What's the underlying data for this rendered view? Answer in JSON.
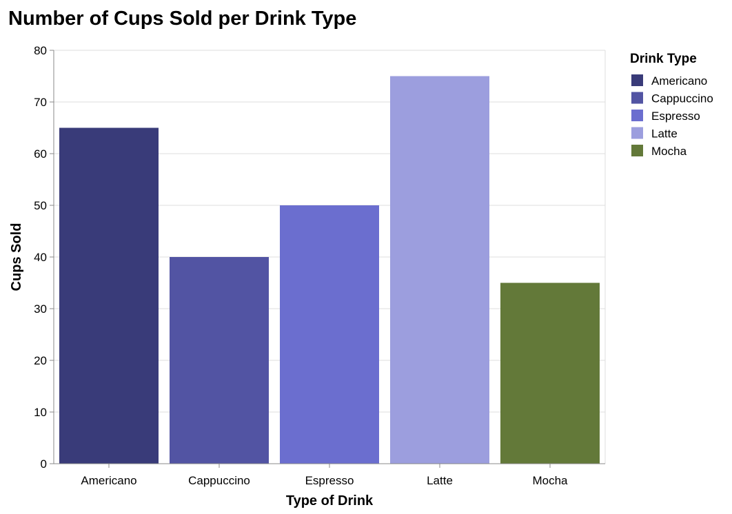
{
  "chart_data": {
    "type": "bar",
    "title": "Number of Cups Sold per Drink Type",
    "xlabel": "Type of Drink",
    "ylabel": "Cups Sold",
    "categories": [
      "Americano",
      "Cappuccino",
      "Espresso",
      "Latte",
      "Mocha"
    ],
    "values": [
      65,
      40,
      50,
      75,
      35
    ],
    "colors": [
      "#393b79",
      "#5254a3",
      "#6b6ecf",
      "#9c9ede",
      "#637939"
    ],
    "ylim": [
      0,
      80
    ],
    "yticks": [
      0,
      10,
      20,
      30,
      40,
      50,
      60,
      70,
      80
    ],
    "grid": true,
    "legend": {
      "title": "Drink Type",
      "placement": "right",
      "entries": [
        "Americano",
        "Cappuccino",
        "Espresso",
        "Latte",
        "Mocha"
      ]
    }
  }
}
